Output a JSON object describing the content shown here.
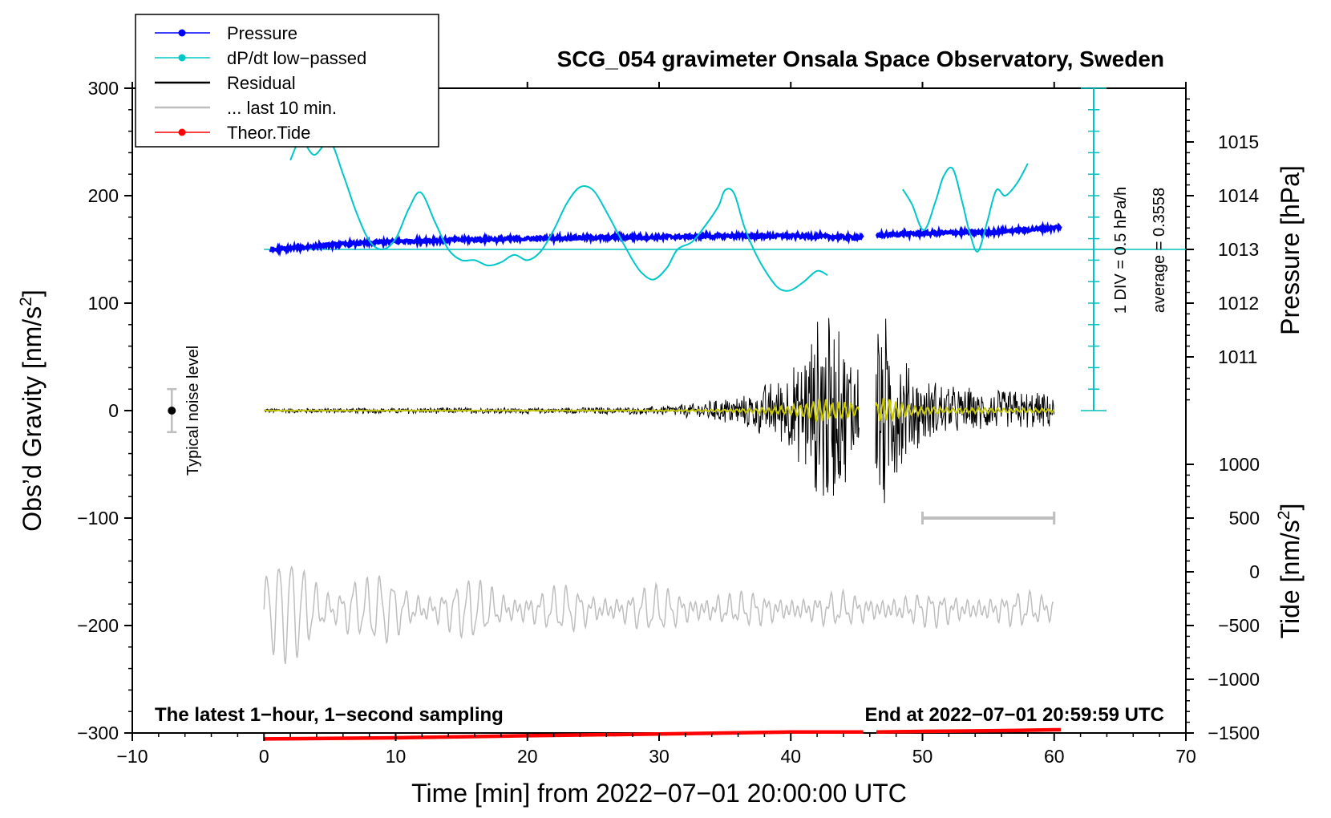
{
  "chart_data": {
    "type": "line",
    "title": "SCG_054 gravimeter Onsala Space Observatory, Sweden",
    "xlabel": "Time [min] from 2022−07−01 20:00:00 UTC",
    "ylabel_left": "Obs’d Gravity [nm/s²]",
    "ylabel_left_parts": {
      "text": "Obs’d Gravity [nm/s",
      "sup": "2",
      "close": "]"
    },
    "ylabel_pressure": "Pressure [hPa]",
    "ylabel_tide": "Tide [nm/s²]",
    "ylabel_tide_parts": {
      "text": "Tide [nm/s",
      "sup": "2",
      "close": "]"
    },
    "xlim": [
      -10,
      70
    ],
    "ylim": [
      -300,
      300
    ],
    "xticks": [
      -10,
      0,
      10,
      20,
      30,
      40,
      50,
      60,
      70
    ],
    "xtick_labels": [
      "−10",
      "0",
      "10",
      "20",
      "30",
      "40",
      "50",
      "60",
      "70"
    ],
    "yticks": [
      -300,
      -200,
      -100,
      0,
      100,
      200,
      300
    ],
    "ytick_labels": [
      "−300",
      "−200",
      "−100",
      "0",
      "100",
      "200",
      "300"
    ],
    "pressure_axis": {
      "ticks": [
        1011,
        1012,
        1013,
        1014,
        1015
      ],
      "tick_labels": [
        "1011",
        "1012",
        "1013",
        "1014",
        "1015"
      ],
      "gravity_equiv_at_1013": 150,
      "gravity_per_hpa": 50
    },
    "tide_axis": {
      "ticks": [
        -1500,
        -1000,
        -500,
        0,
        500,
        1000
      ],
      "tick_labels": [
        "−1500",
        "−1000",
        "−500",
        "0",
        "500",
        "1000"
      ],
      "gravity_equiv_at_0": -150,
      "gravity_per_unit": 0.1
    },
    "legend": [
      {
        "label": "Pressure",
        "color": "#0000ff",
        "marker": true
      },
      {
        "label": "dP/dt low−passed",
        "color": "#00c8c8",
        "marker": true
      },
      {
        "label": "Residual",
        "color": "#000000",
        "marker": false
      },
      {
        "label": "... last 10 min.",
        "color": "#bebebe",
        "marker": false
      },
      {
        "label": "Theor.Tide",
        "color": "#ff0000",
        "marker": true
      }
    ],
    "annotations": {
      "bottom_left": "The latest 1−hour, 1−second sampling",
      "bottom_right": "End at 2022−07−01 20:59:59 UTC",
      "noise_label": "Typical noise level",
      "div_label": "1 DIV = 0.5 hPa/h",
      "average_label": "average = 0.3558"
    },
    "noise_bar": {
      "x": -7,
      "center": 0,
      "half_range": 20
    },
    "scale_bar": {
      "x_start": 50,
      "x_end": 60,
      "y": -100
    },
    "dpdt_scale": {
      "x": 63,
      "y_from": 0,
      "y_to": 300,
      "baseline": 150,
      "minor_step": 20
    },
    "pressure_segments": [
      {
        "x": [
          0.5,
          5,
          10,
          15,
          20,
          25,
          30,
          35,
          40,
          45.5
        ],
        "y": [
          149.5,
          154,
          157.5,
          159,
          160,
          161,
          161.5,
          162.5,
          162.5,
          161
        ]
      },
      {
        "x": [
          46.5,
          50,
          55,
          60,
          60.5
        ],
        "y": [
          163,
          165,
          166,
          170,
          171.5
        ]
      }
    ],
    "dpdt_segments": [
      {
        "x": [
          2,
          2.8,
          3.8,
          5,
          6,
          7,
          8,
          9,
          10,
          11,
          11.9,
          13,
          14,
          15,
          16,
          17,
          18,
          19,
          20,
          21,
          22,
          23,
          24,
          25,
          26,
          27,
          28,
          28.7,
          29.6,
          30.6,
          31.4,
          32.5,
          33.5,
          34.5,
          35,
          35.7,
          36.5,
          37.5,
          38.5,
          39.2,
          40,
          41,
          42,
          42.8
        ],
        "y": [
          233,
          252,
          238,
          250,
          220,
          185,
          158,
          150,
          160,
          188,
          203,
          175,
          150,
          140,
          140,
          135,
          138,
          145,
          140,
          148,
          168,
          193,
          208,
          205,
          185,
          162,
          140,
          128,
          122,
          133,
          150,
          157,
          172,
          190,
          205,
          202,
          170,
          142,
          122,
          113,
          112,
          120,
          130,
          126
        ]
      },
      {
        "x": [
          48.5,
          49.2,
          50.1,
          51,
          51.6,
          52.3,
          53,
          53.6,
          54.2,
          54.9,
          55.6,
          56.3,
          57.2,
          58
        ],
        "y": [
          206,
          192,
          168,
          195,
          218,
          225,
          195,
          165,
          148,
          175,
          205,
          200,
          212,
          230
        ]
      }
    ],
    "tide_segments": [
      {
        "x": [
          0,
          10,
          20,
          30,
          40,
          45.5
        ],
        "y": [
          -1555,
          -1545,
          -1525,
          -1510,
          -1490,
          -1490
        ]
      },
      {
        "x": [
          46.5,
          50,
          55,
          60,
          60.5
        ],
        "y": [
          -1490,
          -1485,
          -1480,
          -1470,
          -1470
        ]
      }
    ],
    "residual_envelope": {
      "x": [
        0,
        10,
        20,
        30,
        33,
        36,
        38,
        40,
        41,
        42,
        42.5,
        43,
        44,
        45,
        46.5,
        47,
        48,
        49,
        50,
        52,
        55,
        60
      ],
      "amp": [
        2.5,
        3,
        3,
        4,
        8,
        15,
        25,
        42,
        62,
        92,
        112,
        88,
        70,
        55,
        100,
        110,
        70,
        48,
        32,
        25,
        20,
        17
      ],
      "gap": [
        45.2,
        46.4
      ]
    },
    "last10_trace": {
      "y_center": -185,
      "amp_max": 45
    }
  }
}
